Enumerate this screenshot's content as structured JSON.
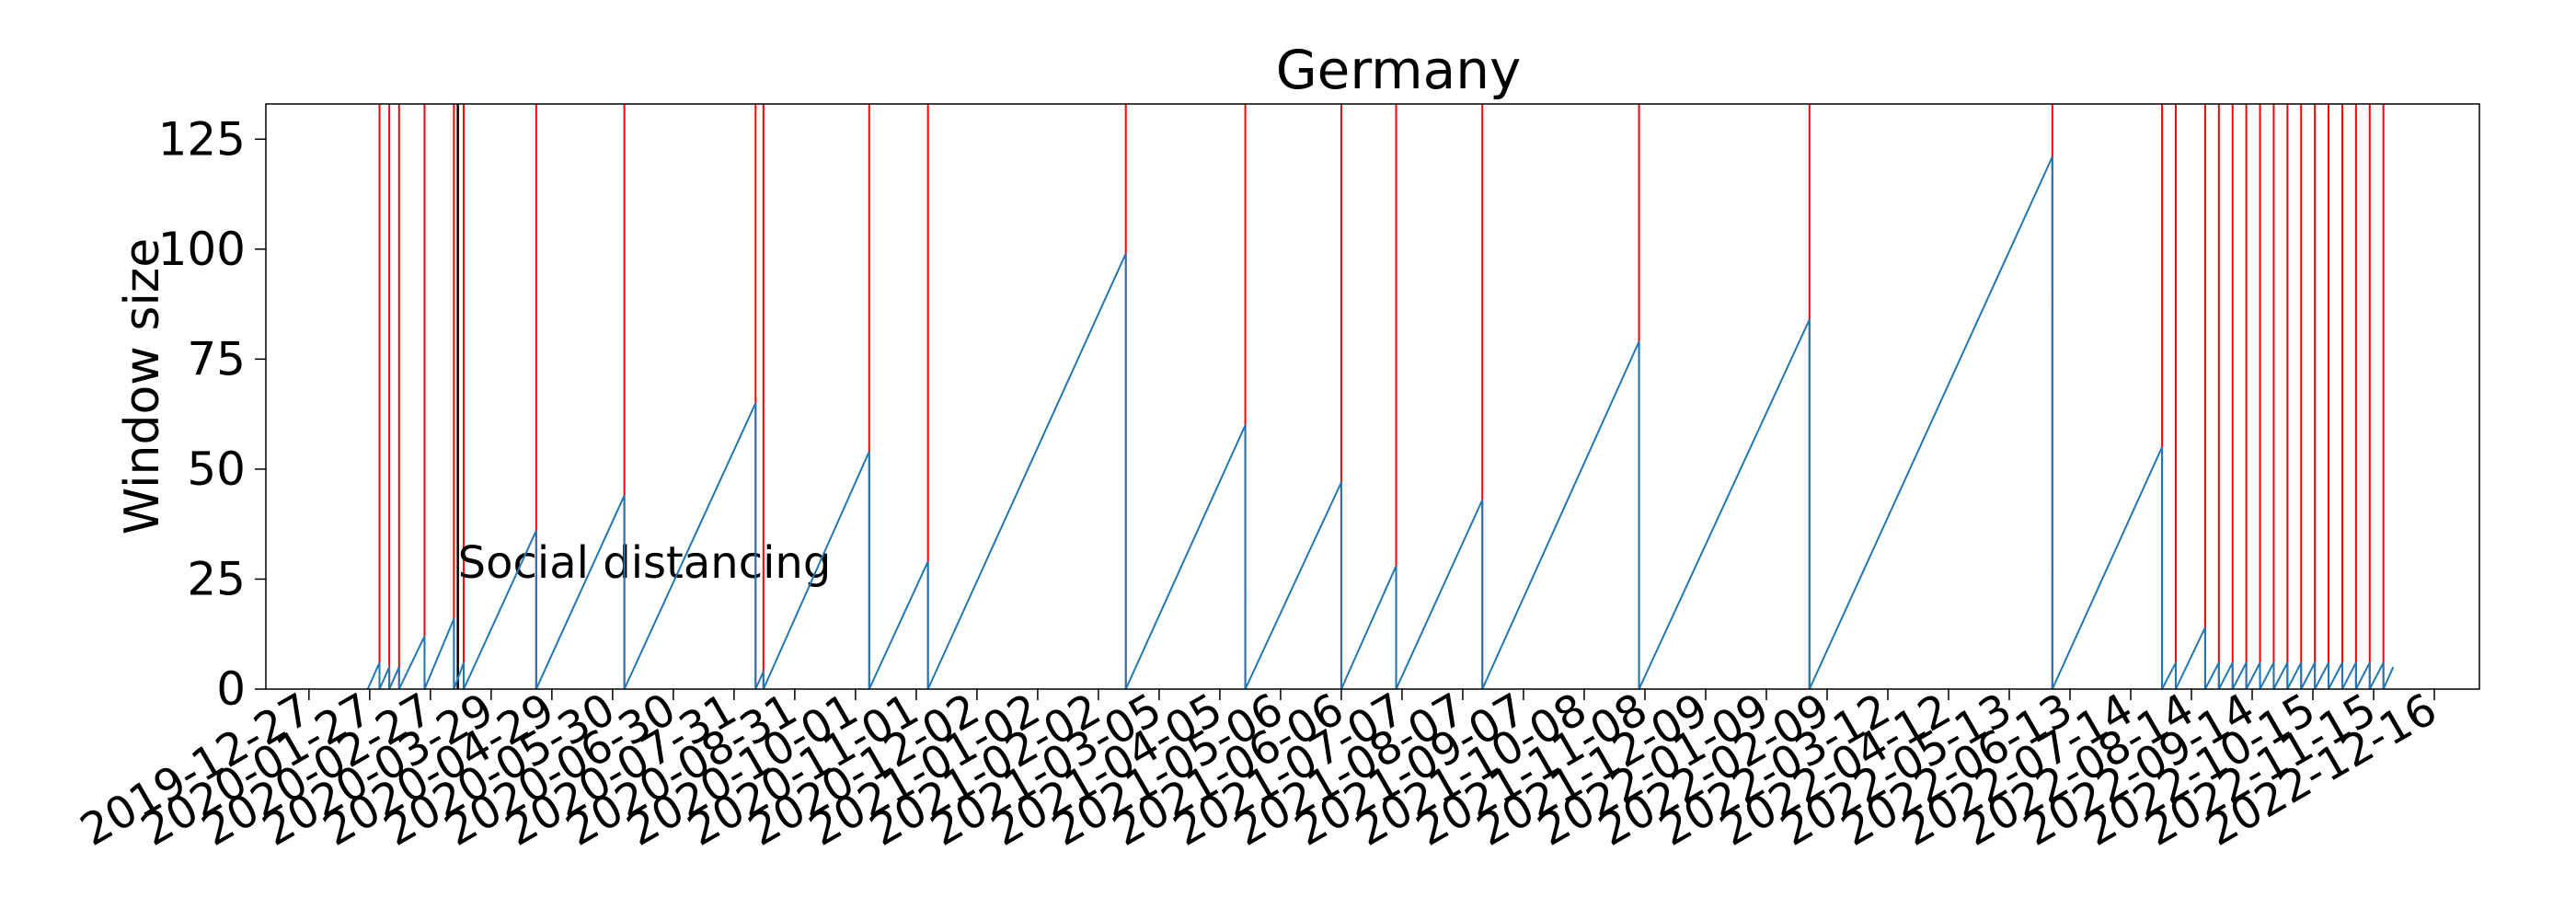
{
  "chart_data": {
    "type": "line",
    "title": "Germany",
    "xlabel": "",
    "ylabel": "Window size",
    "x_type": "date",
    "xlim": [
      "2019-12-05",
      "2023-01-08"
    ],
    "ylim": [
      0,
      133
    ],
    "yticks": [
      0,
      25,
      50,
      75,
      100,
      125
    ],
    "xticks": [
      "2019-12-27",
      "2020-01-27",
      "2020-02-27",
      "2020-03-29",
      "2020-04-29",
      "2020-05-30",
      "2020-06-30",
      "2020-07-31",
      "2020-08-31",
      "2020-10-01",
      "2020-11-01",
      "2020-12-02",
      "2021-01-02",
      "2021-02-02",
      "2021-03-05",
      "2021-04-05",
      "2021-05-06",
      "2021-06-06",
      "2021-07-07",
      "2021-08-07",
      "2021-09-07",
      "2021-10-08",
      "2021-11-08",
      "2021-12-09",
      "2022-01-09",
      "2022-02-09",
      "2022-03-12",
      "2022-04-12",
      "2022-05-13",
      "2022-06-13",
      "2022-07-14",
      "2022-08-14",
      "2022-09-14",
      "2022-10-15",
      "2022-11-15",
      "2022-12-16"
    ],
    "grid": false,
    "series": [
      {
        "color": "#1f77b4",
        "style": "sawtooth",
        "points": [
          {
            "x": "2020-01-26",
            "y": 0
          },
          {
            "x": "2020-02-01",
            "y": 6
          },
          {
            "x": "2020-02-01",
            "y": 0
          },
          {
            "x": "2020-02-06",
            "y": 5
          },
          {
            "x": "2020-02-06",
            "y": 0
          },
          {
            "x": "2020-02-11",
            "y": 5
          },
          {
            "x": "2020-02-11",
            "y": 0
          },
          {
            "x": "2020-02-24",
            "y": 12
          },
          {
            "x": "2020-02-24",
            "y": 0
          },
          {
            "x": "2020-03-10",
            "y": 16
          },
          {
            "x": "2020-03-10",
            "y": 0
          },
          {
            "x": "2020-03-15",
            "y": 6
          },
          {
            "x": "2020-03-15",
            "y": 0
          },
          {
            "x": "2020-04-21",
            "y": 36
          },
          {
            "x": "2020-04-21",
            "y": 0
          },
          {
            "x": "2020-06-05",
            "y": 44
          },
          {
            "x": "2020-06-05",
            "y": 0
          },
          {
            "x": "2020-08-11",
            "y": 65
          },
          {
            "x": "2020-08-11",
            "y": 0
          },
          {
            "x": "2020-08-15",
            "y": 4
          },
          {
            "x": "2020-08-15",
            "y": 0
          },
          {
            "x": "2020-10-08",
            "y": 54
          },
          {
            "x": "2020-10-08",
            "y": 0
          },
          {
            "x": "2020-11-07",
            "y": 29
          },
          {
            "x": "2020-11-07",
            "y": 0
          },
          {
            "x": "2021-02-16",
            "y": 99
          },
          {
            "x": "2021-02-16",
            "y": 0
          },
          {
            "x": "2021-04-18",
            "y": 60
          },
          {
            "x": "2021-04-18",
            "y": 0
          },
          {
            "x": "2021-06-06",
            "y": 47
          },
          {
            "x": "2021-06-06",
            "y": 0
          },
          {
            "x": "2021-07-04",
            "y": 28
          },
          {
            "x": "2021-07-04",
            "y": 0
          },
          {
            "x": "2021-08-17",
            "y": 43
          },
          {
            "x": "2021-08-17",
            "y": 0
          },
          {
            "x": "2021-11-05",
            "y": 79
          },
          {
            "x": "2021-11-05",
            "y": 0
          },
          {
            "x": "2022-01-31",
            "y": 84
          },
          {
            "x": "2022-01-31",
            "y": 0
          },
          {
            "x": "2022-06-04",
            "y": 121
          },
          {
            "x": "2022-06-04",
            "y": 0
          },
          {
            "x": "2022-07-30",
            "y": 55
          },
          {
            "x": "2022-07-30",
            "y": 0
          },
          {
            "x": "2022-08-06",
            "y": 6
          },
          {
            "x": "2022-08-06",
            "y": 0
          },
          {
            "x": "2022-08-21",
            "y": 14
          },
          {
            "x": "2022-08-21",
            "y": 0
          },
          {
            "x": "2022-08-28",
            "y": 6
          },
          {
            "x": "2022-08-28",
            "y": 0
          },
          {
            "x": "2022-09-04",
            "y": 6
          },
          {
            "x": "2022-09-04",
            "y": 0
          },
          {
            "x": "2022-09-11",
            "y": 6
          },
          {
            "x": "2022-09-11",
            "y": 0
          },
          {
            "x": "2022-09-18",
            "y": 6
          },
          {
            "x": "2022-09-18",
            "y": 0
          },
          {
            "x": "2022-09-25",
            "y": 6
          },
          {
            "x": "2022-09-25",
            "y": 0
          },
          {
            "x": "2022-10-02",
            "y": 6
          },
          {
            "x": "2022-10-02",
            "y": 0
          },
          {
            "x": "2022-10-09",
            "y": 6
          },
          {
            "x": "2022-10-09",
            "y": 0
          },
          {
            "x": "2022-10-16",
            "y": 6
          },
          {
            "x": "2022-10-16",
            "y": 0
          },
          {
            "x": "2022-10-23",
            "y": 6
          },
          {
            "x": "2022-10-23",
            "y": 0
          },
          {
            "x": "2022-10-30",
            "y": 6
          },
          {
            "x": "2022-10-30",
            "y": 0
          },
          {
            "x": "2022-11-06",
            "y": 6
          },
          {
            "x": "2022-11-06",
            "y": 0
          },
          {
            "x": "2022-11-13",
            "y": 6
          },
          {
            "x": "2022-11-13",
            "y": 0
          },
          {
            "x": "2022-11-20",
            "y": 6
          },
          {
            "x": "2022-11-20",
            "y": 0
          },
          {
            "x": "2022-11-25",
            "y": 5
          }
        ]
      }
    ],
    "red_vlines": [
      "2020-02-01",
      "2020-02-06",
      "2020-02-11",
      "2020-02-24",
      "2020-03-10",
      "2020-03-15",
      "2020-04-21",
      "2020-06-05",
      "2020-08-11",
      "2020-08-15",
      "2020-10-08",
      "2020-11-07",
      "2021-02-16",
      "2021-04-18",
      "2021-06-06",
      "2021-07-04",
      "2021-08-17",
      "2021-11-05",
      "2022-01-31",
      "2022-06-04",
      "2022-07-30",
      "2022-08-06",
      "2022-08-21",
      "2022-08-28",
      "2022-09-04",
      "2022-09-11",
      "2022-09-18",
      "2022-09-25",
      "2022-10-02",
      "2022-10-09",
      "2022-10-16",
      "2022-10-23",
      "2022-10-30",
      "2022-11-06",
      "2022-11-13",
      "2022-11-20"
    ],
    "red_vline_color": "#ff0000",
    "black_vlines": [
      {
        "x": "2020-03-12",
        "label": "Social distancing"
      }
    ],
    "black_vline_color": "#000000"
  }
}
